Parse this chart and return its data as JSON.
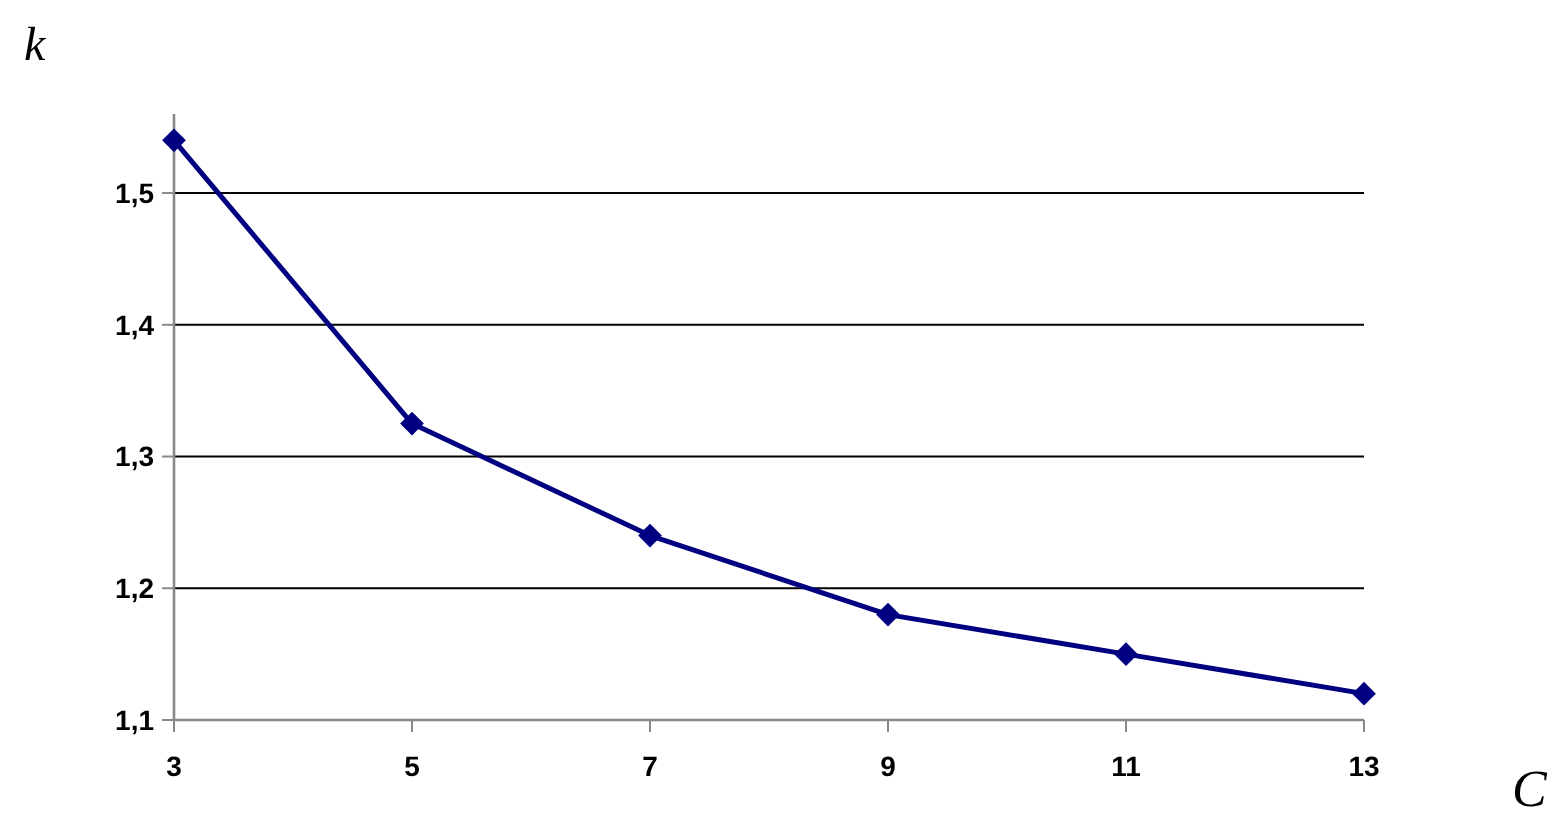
{
  "chart_data": {
    "type": "line",
    "xlabel": "C",
    "ylabel": "k",
    "x": [
      3,
      5,
      7,
      9,
      11,
      13
    ],
    "series": [
      {
        "color": "#000080",
        "values": [
          1.54,
          1.325,
          1.24,
          1.18,
          1.15,
          1.12
        ]
      }
    ],
    "xlim": [
      3,
      13
    ],
    "xticks": [
      3,
      5,
      7,
      9,
      11,
      13
    ],
    "ylim": [
      1.1,
      1.56
    ],
    "yticks": [
      {
        "value": 1.1,
        "label": "1,1"
      },
      {
        "value": 1.2,
        "label": "1,2"
      },
      {
        "value": 1.3,
        "label": "1,3"
      },
      {
        "value": 1.4,
        "label": "1,4"
      },
      {
        "value": 1.5,
        "label": "1,5"
      }
    ],
    "grid": "y",
    "marker": "diamond",
    "line_style": "solid"
  }
}
